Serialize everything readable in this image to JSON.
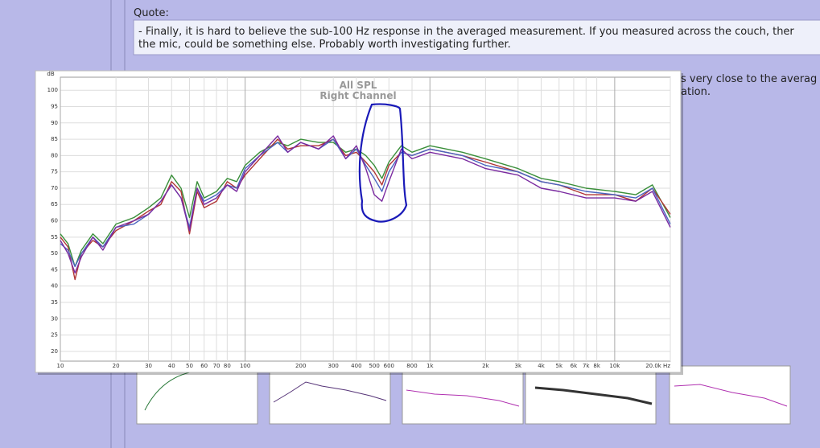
{
  "quote": {
    "label": "Quote:",
    "lines": [
      "- Finally, it is hard to believe the sub-100 Hz response in the averaged measurement. If you measured across the couch, ther",
      "the mic, could be something else. Probably worth investigating further."
    ]
  },
  "post_text": [
    "s very close to the averag",
    "ation."
  ],
  "chart_data": {
    "type": "line",
    "title": "All SPL",
    "subtitle": "Right Channel",
    "ylabel": "dB",
    "xscale": "log",
    "grid": true,
    "xlim": [
      10,
      20000
    ],
    "ylim": [
      17,
      104
    ],
    "xticks": [
      10,
      20,
      30,
      40,
      50,
      60,
      70,
      80,
      100,
      200,
      300,
      400,
      500,
      600,
      800,
      {
        "value": 1000,
        "label": "1k"
      },
      {
        "value": 2000,
        "label": "2k"
      },
      {
        "value": 3000,
        "label": "3k"
      },
      {
        "value": 4000,
        "label": "4k"
      },
      {
        "value": 5000,
        "label": "5k"
      },
      {
        "value": 6000,
        "label": "6k"
      },
      {
        "value": 7000,
        "label": "7k"
      },
      {
        "value": 8000,
        "label": "8k"
      },
      {
        "value": 10000,
        "label": "10k"
      },
      {
        "value": 20000,
        "label": "20.0k Hz"
      }
    ],
    "yticks": [
      20,
      25,
      30,
      35,
      40,
      45,
      50,
      55,
      60,
      65,
      70,
      75,
      80,
      85,
      90,
      95,
      100
    ],
    "x": [
      10,
      11,
      12,
      13,
      15,
      17,
      20,
      25,
      30,
      35,
      40,
      45,
      50,
      55,
      60,
      70,
      80,
      90,
      100,
      120,
      150,
      170,
      200,
      250,
      300,
      350,
      400,
      450,
      500,
      550,
      600,
      700,
      800,
      1000,
      1500,
      2000,
      3000,
      4000,
      5000,
      7000,
      10000,
      13000,
      16000,
      20000
    ],
    "series": [
      {
        "color": "#3a8f3a",
        "values": [
          56,
          53,
          46,
          51,
          56,
          53,
          59,
          61,
          64,
          67,
          74,
          70,
          61,
          72,
          67,
          69,
          73,
          72,
          77,
          81,
          84,
          83,
          85,
          84,
          84,
          81,
          82,
          80,
          77,
          73,
          78,
          83,
          81,
          83,
          81,
          79,
          76,
          73,
          72,
          70,
          69,
          68,
          71,
          61
        ]
      },
      {
        "color": "#b03535",
        "values": [
          55,
          52,
          42,
          50,
          54,
          52,
          57,
          60,
          63,
          65,
          72,
          69,
          56,
          69,
          64,
          66,
          72,
          70,
          74,
          79,
          85,
          82,
          83,
          83,
          85,
          80,
          81,
          78,
          75,
          71,
          77,
          81,
          80,
          82,
          80,
          78,
          75,
          72,
          71,
          68,
          68,
          66,
          70,
          62
        ]
      },
      {
        "color": "#4a64c0",
        "values": [
          53,
          51,
          46,
          50,
          55,
          52,
          58,
          59,
          62,
          66,
          71,
          67,
          58,
          70,
          66,
          68,
          71,
          70,
          76,
          80,
          84,
          81,
          84,
          82,
          85,
          79,
          82,
          77,
          73,
          69,
          75,
          81,
          80,
          82,
          80,
          77,
          75,
          72,
          71,
          69,
          68,
          67,
          70,
          59
        ]
      },
      {
        "color": "#7a2aa0",
        "values": [
          54,
          50,
          44,
          49,
          55,
          51,
          58,
          60,
          62,
          66,
          71,
          67,
          57,
          70,
          65,
          67,
          71,
          69,
          75,
          80,
          86,
          81,
          84,
          82,
          86,
          79,
          83,
          76,
          68,
          66,
          72,
          82,
          79,
          81,
          79,
          76,
          74,
          70,
          69,
          67,
          67,
          66,
          69,
          58
        ]
      }
    ]
  }
}
